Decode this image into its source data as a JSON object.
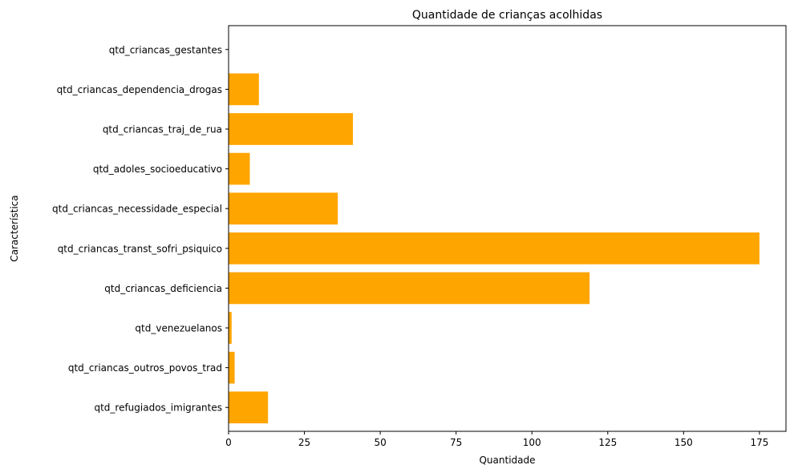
{
  "chart_data": {
    "type": "bar",
    "orientation": "horizontal",
    "title": "Quantidade de crianças acolhidas",
    "xlabel": "Quantidade",
    "ylabel": "Característica",
    "categories": [
      "qtd_refugiados_imigrantes",
      "qtd_criancas_outros_povos_trad",
      "qtd_venezuelanos",
      "qtd_criancas_deficiencia",
      "qtd_criancas_transt_sofri_psiquico",
      "qtd_criancas_necessidade_especial",
      "qtd_adoles_socioeducativo",
      "qtd_criancas_traj_de_rua",
      "qtd_criancas_dependencia_drogas",
      "qtd_criancas_gestantes"
    ],
    "values": [
      13,
      2,
      1,
      119,
      175,
      36,
      7,
      41,
      10,
      0
    ],
    "xlim": [
      0,
      183.75
    ],
    "xticks": [
      0,
      25,
      50,
      75,
      100,
      125,
      150,
      175
    ],
    "grid": false,
    "bar_color": "#ffa500"
  }
}
